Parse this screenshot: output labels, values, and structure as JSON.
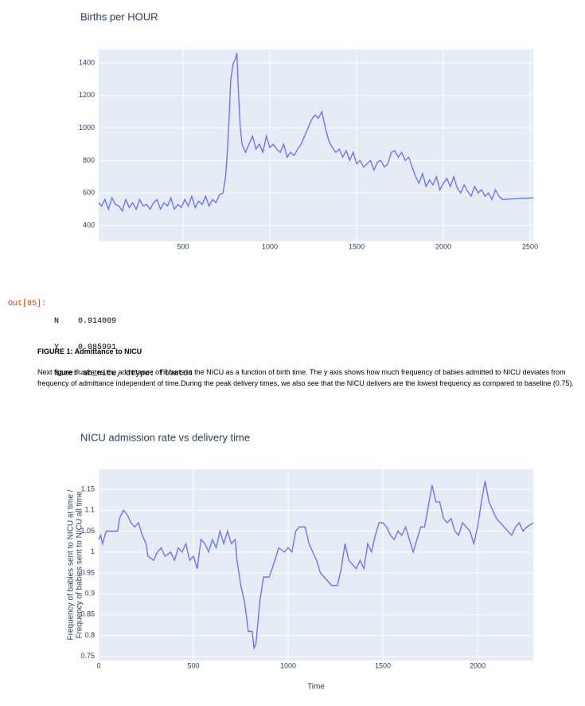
{
  "chart_data": [
    {
      "type": "line",
      "title": "Births per HOUR",
      "x": [
        14,
        30,
        50,
        70,
        90,
        110,
        130,
        150,
        170,
        190,
        210,
        230,
        250,
        270,
        290,
        310,
        330,
        350,
        370,
        390,
        410,
        430,
        450,
        470,
        490,
        510,
        530,
        550,
        570,
        590,
        610,
        630,
        650,
        670,
        690,
        710,
        730,
        745,
        755,
        765,
        775,
        790,
        800,
        810,
        820,
        830,
        840,
        860,
        880,
        900,
        920,
        940,
        960,
        980,
        1000,
        1020,
        1040,
        1060,
        1080,
        1100,
        1120,
        1140,
        1160,
        1180,
        1200,
        1220,
        1240,
        1260,
        1280,
        1300,
        1320,
        1340,
        1360,
        1380,
        1400,
        1420,
        1440,
        1460,
        1480,
        1500,
        1520,
        1540,
        1560,
        1580,
        1600,
        1620,
        1640,
        1660,
        1680,
        1700,
        1720,
        1740,
        1760,
        1780,
        1800,
        1820,
        1840,
        1860,
        1880,
        1900,
        1920,
        1940,
        1960,
        1980,
        2000,
        2020,
        2040,
        2060,
        2080,
        2100,
        2120,
        2140,
        2160,
        2180,
        2200,
        2220,
        2240,
        2260,
        2280,
        2300,
        2320,
        2340,
        2518
      ],
      "series": [
        {
          "color": "#636efa",
          "values": [
            540,
            520,
            560,
            500,
            570,
            530,
            520,
            490,
            560,
            510,
            540,
            500,
            560,
            520,
            530,
            500,
            540,
            560,
            500,
            540,
            520,
            570,
            500,
            530,
            510,
            560,
            520,
            580,
            510,
            550,
            530,
            580,
            520,
            560,
            540,
            590,
            600,
            700,
            850,
            1050,
            1300,
            1400,
            1420,
            1460,
            1200,
            1000,
            900,
            850,
            900,
            950,
            870,
            900,
            850,
            950,
            880,
            900,
            870,
            850,
            900,
            820,
            850,
            830,
            870,
            900,
            950,
            1000,
            1050,
            1080,
            1060,
            1100,
            1000,
            920,
            880,
            850,
            870,
            820,
            860,
            800,
            850,
            780,
            800,
            760,
            780,
            800,
            740,
            790,
            800,
            760,
            780,
            850,
            860,
            820,
            850,
            800,
            820,
            760,
            700,
            660,
            720,
            640,
            680,
            650,
            700,
            620,
            660,
            690,
            640,
            700,
            630,
            600,
            650,
            610,
            580,
            640,
            600,
            620,
            580,
            600,
            560,
            620,
            580,
            560,
            570
          ]
        }
      ],
      "xlim": [
        14,
        2518
      ],
      "ylim": [
        302,
        1483
      ],
      "xticks": [
        500,
        1000,
        1500,
        2000,
        2500
      ],
      "yticks": [
        400,
        600,
        800,
        1000,
        1200,
        1400
      ],
      "grid": true
    },
    {
      "type": "line",
      "title": "NICU admission rate vs delivery time",
      "x_label": "Time",
      "y_label": [
        "Frequency of babies sent to NICU at time /",
        "Frequency of babies sent to NICU all time"
      ],
      "x": [
        0,
        10,
        20,
        40,
        100,
        110,
        130,
        150,
        170,
        190,
        210,
        230,
        250,
        260,
        290,
        310,
        330,
        350,
        380,
        400,
        420,
        440,
        460,
        480,
        500,
        520,
        540,
        560,
        580,
        600,
        620,
        640,
        660,
        680,
        700,
        720,
        730,
        750,
        770,
        790,
        810,
        820,
        830,
        850,
        870,
        900,
        930,
        950,
        980,
        1000,
        1020,
        1040,
        1060,
        1090,
        1100,
        1110,
        1130,
        1150,
        1170,
        1190,
        1210,
        1230,
        1260,
        1280,
        1300,
        1320,
        1340,
        1360,
        1380,
        1400,
        1420,
        1440,
        1460,
        1480,
        1500,
        1520,
        1540,
        1560,
        1580,
        1600,
        1620,
        1640,
        1660,
        1680,
        1700,
        1720,
        1740,
        1760,
        1780,
        1800,
        1820,
        1840,
        1860,
        1880,
        1900,
        1920,
        1940,
        1960,
        1980,
        2000,
        2020,
        2040,
        2060,
        2080,
        2100,
        2120,
        2140,
        2160,
        2180,
        2200,
        2220,
        2240,
        2260,
        2294
      ],
      "series": [
        {
          "color": "#636efa",
          "values": [
            1.03,
            1.04,
            1.02,
            1.05,
            1.05,
            1.08,
            1.1,
            1.09,
            1.07,
            1.06,
            1.07,
            1.04,
            1.02,
            0.99,
            0.98,
            1.0,
            1.01,
            0.99,
            1.0,
            0.98,
            1.01,
            1.0,
            1.02,
            0.98,
            0.99,
            0.96,
            1.03,
            1.02,
            1.0,
            1.03,
            1.01,
            1.05,
            1.02,
            1.05,
            1.02,
            1.03,
            0.98,
            0.92,
            0.88,
            0.81,
            0.81,
            0.77,
            0.78,
            0.88,
            0.94,
            0.94,
            0.98,
            1.01,
            1.0,
            1.01,
            1.0,
            1.05,
            1.06,
            1.06,
            1.04,
            1.02,
            1.0,
            0.98,
            0.95,
            0.94,
            0.93,
            0.92,
            0.92,
            0.96,
            1.02,
            0.98,
            0.97,
            0.96,
            0.98,
            0.96,
            1.02,
            1.0,
            1.04,
            1.07,
            1.07,
            1.06,
            1.04,
            1.03,
            1.05,
            1.04,
            1.06,
            1.03,
            1.0,
            1.03,
            1.06,
            1.06,
            1.11,
            1.16,
            1.12,
            1.12,
            1.08,
            1.07,
            1.08,
            1.05,
            1.04,
            1.07,
            1.06,
            1.05,
            1.02,
            1.06,
            1.12,
            1.17,
            1.12,
            1.1,
            1.08,
            1.07,
            1.06,
            1.05,
            1.04,
            1.06,
            1.07,
            1.05,
            1.06,
            1.07
          ]
        }
      ],
      "xlim": [
        0,
        2294
      ],
      "ylim": [
        0.74,
        1.198
      ],
      "xticks": [
        0,
        500,
        1000,
        1500,
        2000
      ],
      "yticks": [
        0.75,
        0.8,
        0.85,
        0.9,
        0.95,
        1,
        1.05,
        1.1,
        1.15
      ],
      "grid": true
    }
  ],
  "output": {
    "prompt": "Out[85]:",
    "lines": [
      "N    0.914009",
      "Y    0.085991",
      "Name: ab_nicu, dtype: float64"
    ]
  },
  "figure": {
    "heading": "FIGURE 1: Admittance to NICU",
    "paragraph": "Next figure illustrates the admittance of infants to the NICU as a function of birth time. The y axis shows how much frequency of babies admitted to NICU deviates from frequency of admittance independent of time.During the peak delivery times, we also see that the NICU delivers are the lowest frequency as compared to baseline (0.75)."
  }
}
